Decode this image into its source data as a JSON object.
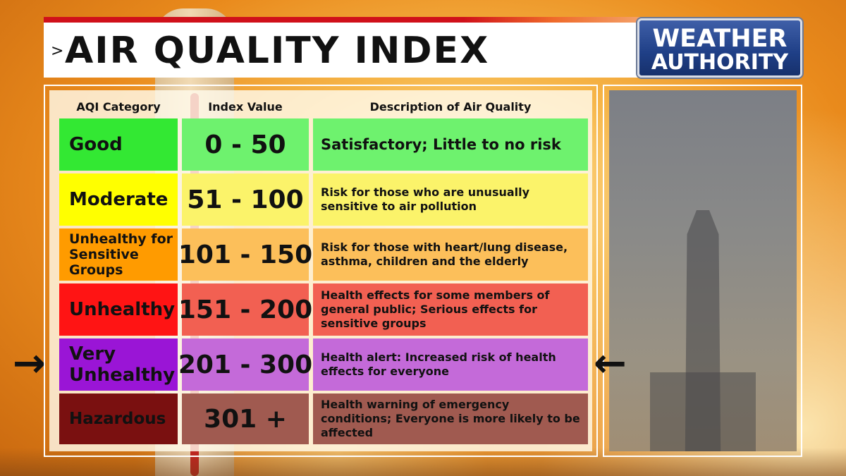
{
  "title": {
    "chevron": ">",
    "text": "AIR QUALITY INDEX"
  },
  "logo": {
    "line1": "WEATHER",
    "line2": "AUTHORITY"
  },
  "table": {
    "headers": {
      "category": "AQI Category",
      "index": "Index Value",
      "description": "Description of Air Quality"
    },
    "rows": [
      {
        "category": "Good",
        "index": "0 - 50",
        "description": "Satisfactory; Little to no risk",
        "cat_color": "#33e833",
        "row_color": "#6ef26e"
      },
      {
        "category": "Moderate",
        "index": "51 - 100",
        "description": "Risk for those who are unusually sensitive to air pollution",
        "cat_color": "#ffff00",
        "row_color": "#fbf36a"
      },
      {
        "category": "Unhealthy for Sensitive Groups",
        "index": "101 - 150",
        "description": "Risk for those with heart/lung disease, asthma, children and the elderly",
        "cat_color": "#ff9b00",
        "row_color": "#fcbf5a"
      },
      {
        "category": "Unhealthy",
        "index": "151 - 200",
        "description": "Health effects for some members of general public; Serious effects for sensitive groups",
        "cat_color": "#ff1414",
        "row_color": "#f26052"
      },
      {
        "category": "Very Unhealthy",
        "index": "201 - 300",
        "description": "Health alert: Increased risk of health effects for everyone",
        "cat_color": "#9a15d6",
        "row_color": "#c46ad9"
      },
      {
        "category": "Hazardous",
        "index": "301 +",
        "description": "Health warning of emergency conditions; Everyone is more likely to be affected",
        "cat_color": "#7a1010",
        "row_color": "#a05a50"
      }
    ]
  },
  "arrows": {
    "left": "→",
    "right": "←"
  }
}
